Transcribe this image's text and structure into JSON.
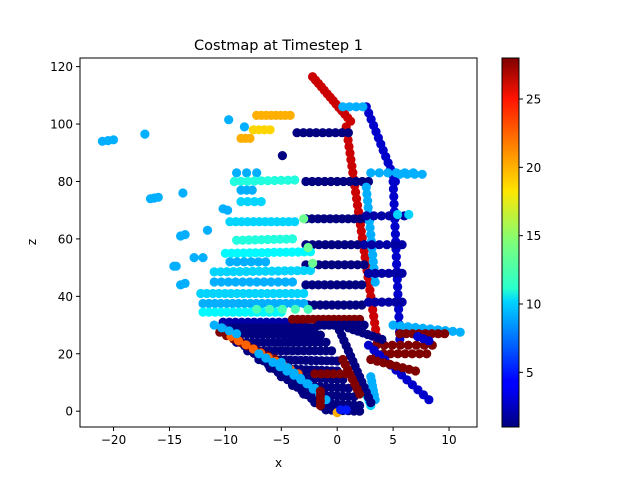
{
  "chart_data": {
    "type": "scatter",
    "title": "Costmap at Timestep 1",
    "xlabel": "x",
    "ylabel": "z",
    "xlim": [
      -23,
      12.5
    ],
    "ylim": [
      -5.5,
      123
    ],
    "xticks": [
      -20,
      -15,
      -10,
      -5,
      0,
      5,
      10
    ],
    "yticks": [
      0,
      20,
      40,
      60,
      80,
      100,
      120
    ],
    "grid": false,
    "legend": "none",
    "colorbar": {
      "colormap": "jet",
      "min": 1,
      "max": 28,
      "ticks": [
        5,
        10,
        15,
        20,
        25
      ],
      "placement": "right"
    },
    "groups": [
      {
        "x0": -2.2,
        "z0": 116.5,
        "x1": 1.2,
        "z1": 101,
        "n": 14,
        "c": 26
      },
      {
        "x0": 0.8,
        "z0": 99,
        "x1": 3.6,
        "z1": 24,
        "n": 34,
        "c": 26
      },
      {
        "x0": 2.6,
        "z0": 106,
        "x1": 5.2,
        "z1": 80,
        "n": 13,
        "c": 3
      },
      {
        "x0": 0.5,
        "z0": 106,
        "x1": 2.3,
        "z1": 106,
        "n": 4,
        "c": 9
      },
      {
        "x0": -3.6,
        "z0": 97,
        "x1": 1,
        "z1": 97,
        "n": 9,
        "c": 1
      },
      {
        "x0": -2.8,
        "z0": 80,
        "x1": 2.8,
        "z1": 80,
        "n": 11,
        "c": 1
      },
      {
        "x0": -2.8,
        "z0": 67,
        "x1": 2.6,
        "z1": 67,
        "n": 11,
        "c": 1
      },
      {
        "x0": -2.8,
        "z0": 58,
        "x1": 2.4,
        "z1": 58,
        "n": 10,
        "c": 1
      },
      {
        "x0": -2.8,
        "z0": 51,
        "x1": 2.4,
        "z1": 51,
        "n": 10,
        "c": 1
      },
      {
        "x0": -2.8,
        "z0": 44,
        "x1": 2.2,
        "z1": 44,
        "n": 10,
        "c": 1
      },
      {
        "x0": -2.6,
        "z0": 37,
        "x1": 2.2,
        "z1": 37,
        "n": 10,
        "c": 1
      },
      {
        "x0": 3,
        "z0": 83,
        "x1": 6.8,
        "z1": 83,
        "n": 6,
        "c": 9
      },
      {
        "x0": 5,
        "z0": 80,
        "x1": 5.6,
        "z1": 25,
        "n": 22,
        "c": 3
      },
      {
        "x0": 2.6,
        "z0": 78,
        "x1": 3.4,
        "z1": 45,
        "n": 15,
        "c": 9
      },
      {
        "x0": 2.6,
        "z0": 68,
        "x1": 6,
        "z1": 68,
        "n": 6,
        "c": 2
      },
      {
        "x0": 2.4,
        "z0": 58,
        "x1": 5.8,
        "z1": 58,
        "n": 6,
        "c": 2
      },
      {
        "x0": 2.8,
        "z0": 48,
        "x1": 5.8,
        "z1": 48,
        "n": 6,
        "c": 2
      },
      {
        "x0": 2.8,
        "z0": 38,
        "x1": 5.8,
        "z1": 38,
        "n": 6,
        "c": 2
      },
      {
        "x0": 5.6,
        "z0": 82.5,
        "x1": 7.6,
        "z1": 82.5,
        "n": 4,
        "c": 9
      },
      {
        "x0": 5.4,
        "z0": 68.5,
        "x1": 6.4,
        "z1": 68.5,
        "n": 2,
        "c": 10
      },
      {
        "x0": 5,
        "z0": 30,
        "x1": 11,
        "z1": 27.5,
        "n": 10,
        "c": 9
      },
      {
        "x0": 5.6,
        "z0": 27,
        "x1": 9.6,
        "z1": 27,
        "n": 8,
        "c": 28
      },
      {
        "x0": 3.5,
        "z0": 23,
        "x1": 8.5,
        "z1": 23,
        "n": 8,
        "c": 28
      },
      {
        "x0": 3.5,
        "z0": 20,
        "x1": 8,
        "z1": 20,
        "n": 8,
        "c": 28
      },
      {
        "x0": 7.2,
        "z0": 26,
        "x1": 8.2,
        "z1": 24.5,
        "n": 3,
        "c": 3
      },
      {
        "x0": 2.8,
        "z0": 23,
        "x1": 8.2,
        "z1": 4,
        "n": 12,
        "c": 3
      },
      {
        "x0": 3,
        "z0": 18,
        "x1": 7,
        "z1": 14,
        "n": 8,
        "c": 28
      },
      {
        "x0": 3,
        "z0": 12,
        "x1": 3.4,
        "z1": 4,
        "n": 6,
        "c": 9
      },
      {
        "x0": 2.2,
        "z0": 10,
        "x1": 3,
        "z1": 2,
        "n": 6,
        "c": 10
      },
      {
        "x0": -7.2,
        "z0": 103,
        "x1": -4.2,
        "z1": 103,
        "n": 8,
        "c": 20
      },
      {
        "x0": -7.5,
        "z0": 98,
        "x1": -6,
        "z1": 98,
        "n": 4,
        "c": 19
      },
      {
        "x0": -8.6,
        "z0": 95,
        "x1": -7.8,
        "z1": 95,
        "n": 3,
        "c": 20
      },
      {
        "x0": -9.7,
        "z0": 101.5,
        "x1": -9.7,
        "z1": 101.5,
        "n": 1,
        "c": 9
      },
      {
        "x0": -8.3,
        "z0": 99,
        "x1": -8.3,
        "z1": 99,
        "n": 1,
        "c": 9
      },
      {
        "x0": -4.9,
        "z0": 89,
        "x1": -4.9,
        "z1": 89,
        "n": 1,
        "c": 1
      },
      {
        "x0": -9,
        "z0": 83,
        "x1": -7.2,
        "z1": 83,
        "n": 3,
        "c": 9
      },
      {
        "x0": -9.2,
        "z0": 80,
        "x1": -3.8,
        "z1": 80.5,
        "n": 10,
        "c": 12
      },
      {
        "x0": -8.6,
        "z0": 77,
        "x1": -7.6,
        "z1": 77,
        "n": 3,
        "c": 9
      },
      {
        "x0": -8.6,
        "z0": 73,
        "x1": -6.8,
        "z1": 73,
        "n": 4,
        "c": 10
      },
      {
        "x0": -10.2,
        "z0": 70.5,
        "x1": -9.8,
        "z1": 70,
        "n": 2,
        "c": 9
      },
      {
        "x0": -11.6,
        "z0": 63,
        "x1": -11.6,
        "z1": 63,
        "n": 1,
        "c": 9
      },
      {
        "x0": -9.6,
        "z0": 66,
        "x1": -3.8,
        "z1": 66,
        "n": 12,
        "c": 10
      },
      {
        "x0": -9,
        "z0": 59.5,
        "x1": -4,
        "z1": 60,
        "n": 10,
        "c": 12
      },
      {
        "x0": -10,
        "z0": 55,
        "x1": -2.4,
        "z1": 55.5,
        "n": 15,
        "c": 11
      },
      {
        "x0": -9.6,
        "z0": 52,
        "x1": -6.4,
        "z1": 52,
        "n": 6,
        "c": 9
      },
      {
        "x0": -11,
        "z0": 48.5,
        "x1": -2.4,
        "z1": 49,
        "n": 16,
        "c": 10
      },
      {
        "x0": -11,
        "z0": 45,
        "x1": -4,
        "z1": 45,
        "n": 12,
        "c": 9
      },
      {
        "x0": -12.2,
        "z0": 41,
        "x1": -3,
        "z1": 41,
        "n": 18,
        "c": 10
      },
      {
        "x0": -12,
        "z0": 37.5,
        "x1": -3,
        "z1": 37.5,
        "n": 18,
        "c": 9
      },
      {
        "x0": -12,
        "z0": 34.5,
        "x1": -5,
        "z1": 34.5,
        "n": 14,
        "c": 11
      },
      {
        "x0": -10.2,
        "z0": 31,
        "x1": -3,
        "z1": 31,
        "n": 14,
        "c": 2
      },
      {
        "x0": -21,
        "z0": 94,
        "x1": -20,
        "z1": 94.5,
        "n": 3,
        "c": 9
      },
      {
        "x0": -17.2,
        "z0": 96.5,
        "x1": -17.2,
        "z1": 96.5,
        "n": 1,
        "c": 9
      },
      {
        "x0": -16.7,
        "z0": 74,
        "x1": -16,
        "z1": 74.5,
        "n": 3,
        "c": 9
      },
      {
        "x0": -13.8,
        "z0": 76,
        "x1": -13.8,
        "z1": 76,
        "n": 1,
        "c": 9
      },
      {
        "x0": -14,
        "z0": 61,
        "x1": -13.6,
        "z1": 61.5,
        "n": 2,
        "c": 9
      },
      {
        "x0": -14.6,
        "z0": 50.5,
        "x1": -14.4,
        "z1": 50.5,
        "n": 2,
        "c": 9
      },
      {
        "x0": -14,
        "z0": 44,
        "x1": -13.6,
        "z1": 44.5,
        "n": 2,
        "c": 9
      },
      {
        "x0": -12.8,
        "z0": 53.5,
        "x1": -12,
        "z1": 53.5,
        "n": 2,
        "c": 9
      },
      {
        "x0": -7.2,
        "z0": 35.5,
        "x1": -2.6,
        "z1": 35.5,
        "n": 5,
        "c": 13
      },
      {
        "x0": -2.6,
        "z0": 57,
        "x1": -2.6,
        "z1": 57,
        "n": 1,
        "c": 14
      },
      {
        "x0": -2.2,
        "z0": 51.5,
        "x1": -2.2,
        "z1": 51.5,
        "n": 1,
        "c": 14
      },
      {
        "x0": -3,
        "z0": 67,
        "x1": -3,
        "z1": 67,
        "n": 1,
        "c": 14
      },
      {
        "x0": -9.5,
        "z0": 29,
        "x1": -2,
        "z1": 29,
        "n": 18,
        "c": 1
      },
      {
        "x0": -9.5,
        "z0": 27,
        "x1": -1.5,
        "z1": 26.5,
        "n": 18,
        "c": 1
      },
      {
        "x0": -9,
        "z0": 24,
        "x1": -1,
        "z1": 24,
        "n": 18,
        "c": 1
      },
      {
        "x0": -8,
        "z0": 21,
        "x1": -0.5,
        "z1": 21,
        "n": 16,
        "c": 1
      },
      {
        "x0": -7,
        "z0": 18,
        "x1": 0,
        "z1": 17.5,
        "n": 16,
        "c": 1
      },
      {
        "x0": -6,
        "z0": 15,
        "x1": 0,
        "z1": 14,
        "n": 14,
        "c": 1
      },
      {
        "x0": -5,
        "z0": 12,
        "x1": 0.5,
        "z1": 11,
        "n": 12,
        "c": 1
      },
      {
        "x0": -4,
        "z0": 9,
        "x1": 1,
        "z1": 8,
        "n": 11,
        "c": 1
      },
      {
        "x0": -3,
        "z0": 6,
        "x1": 1.5,
        "z1": 5,
        "n": 10,
        "c": 1
      },
      {
        "x0": -2,
        "z0": 3,
        "x1": 2,
        "z1": 2,
        "n": 9,
        "c": 1
      },
      {
        "x0": -1,
        "z0": 0.5,
        "x1": 2,
        "z1": 0,
        "n": 7,
        "c": 1
      },
      {
        "x0": -10,
        "z0": 28,
        "x1": -1,
        "z1": 0.5,
        "n": 22,
        "c": 1
      },
      {
        "x0": 0,
        "z0": 30,
        "x1": 3,
        "z1": 3,
        "n": 16,
        "c": 1
      },
      {
        "x0": -4,
        "z0": 32,
        "x1": 2,
        "z1": 32,
        "n": 14,
        "c": 28
      },
      {
        "x0": -1.6,
        "z0": 30,
        "x1": 2.4,
        "z1": 30,
        "n": 10,
        "c": 1
      },
      {
        "x0": 1,
        "z0": 29,
        "x1": 4,
        "z1": 25,
        "n": 8,
        "c": 1
      },
      {
        "x0": -10.5,
        "z0": 27.5,
        "x1": -5,
        "z1": 17,
        "n": 10,
        "c": 28
      },
      {
        "x0": -9.5,
        "z0": 26,
        "x1": -3.5,
        "z1": 13,
        "n": 10,
        "c": 22
      },
      {
        "x0": -7,
        "z0": 20,
        "x1": -2,
        "z1": 8,
        "n": 9,
        "c": 9
      },
      {
        "x0": -5,
        "z0": 17,
        "x1": -1,
        "z1": 4,
        "n": 8,
        "c": 9
      },
      {
        "x0": -11,
        "z0": 30,
        "x1": -9,
        "z1": 27,
        "n": 4,
        "c": 9
      },
      {
        "x0": -2,
        "z0": 13,
        "x1": 0.8,
        "z1": 13,
        "n": 6,
        "c": 28
      },
      {
        "x0": 0.5,
        "z0": 18,
        "x1": 2,
        "z1": 6,
        "n": 8,
        "c": 28
      },
      {
        "x0": -1.5,
        "z0": 7,
        "x1": -1.5,
        "z1": 2,
        "n": 4,
        "c": 28
      },
      {
        "x0": 0,
        "z0": -0.5,
        "x1": 0,
        "z1": -0.5,
        "n": 1,
        "c": 20
      },
      {
        "x0": 0.3,
        "z0": 0.5,
        "x1": 0.8,
        "z1": 0.5,
        "n": 2,
        "c": 5
      }
    ]
  }
}
